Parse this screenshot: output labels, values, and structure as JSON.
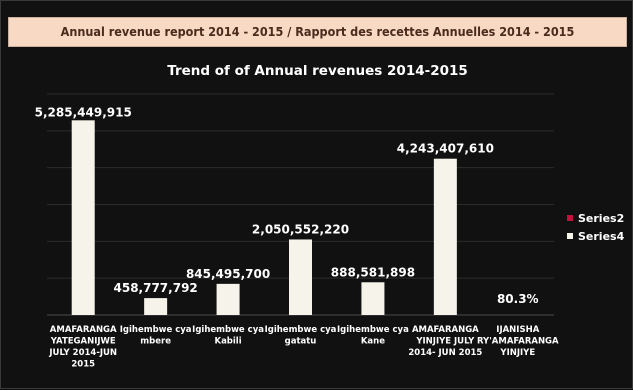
{
  "header": {
    "title": "Annual revenue report 2014 - 2015 / Rapport des recettes Annuelles  2014 - 2015"
  },
  "chart_data": {
    "type": "bar",
    "title": "Trend of  of Annual revenues 2014-2015",
    "categories": [
      [
        "AMAFARANGA",
        "YATEGANIJWE",
        "JULY 2014-JUN",
        "2015"
      ],
      [
        "Igihembwe cya",
        "mbere"
      ],
      [
        "Igihembwe cya",
        "Kabili"
      ],
      [
        "Igihembwe cya",
        "gatatu"
      ],
      [
        "Igihembwe cya",
        "Kane"
      ],
      [
        "AMAFARANGA",
        "YINJIYE JULY",
        "2014- JUN 2015"
      ],
      [
        "IJANISHA",
        "RY'AMAFARANGA",
        "YINJIYE"
      ]
    ],
    "series": [
      {
        "name": "Series2",
        "color": "#c0143c",
        "values": [
          null,
          null,
          null,
          null,
          null,
          null,
          null
        ]
      },
      {
        "name": "Series4",
        "color": "#f5f3ea",
        "values": [
          5285449915,
          458777792,
          845495700,
          2050552220,
          888581898,
          4243407610,
          0.803
        ]
      }
    ],
    "data_labels": [
      "5,285,449,915",
      "458,777,792",
      "845,495,700",
      "2,050,552,220",
      "888,581,898",
      "4,243,407,610",
      "80.3%"
    ],
    "ylim": [
      0,
      6000000000
    ],
    "gridlines": [
      1000000000,
      2000000000,
      3000000000,
      4000000000,
      5000000000,
      6000000000
    ],
    "grid": true,
    "legend": "right"
  }
}
